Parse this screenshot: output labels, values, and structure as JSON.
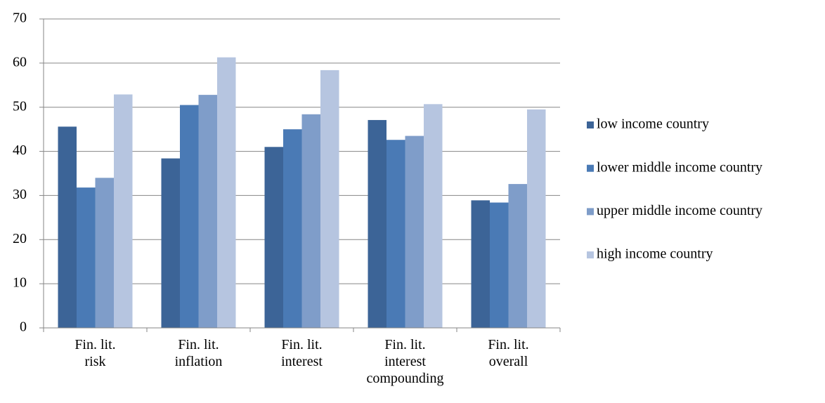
{
  "chart_data": {
    "type": "bar",
    "categories": [
      "Fin. lit.\nrisk",
      "Fin. lit.\ninflation",
      "Fin. lit.\ninterest",
      "Fin. lit.\ninterest\ncompounding",
      "Fin. lit.\noverall"
    ],
    "series": [
      {
        "name": "low income country",
        "color": "#3c6497",
        "values": [
          45.6,
          38.4,
          41,
          47.1,
          28.9
        ]
      },
      {
        "name": "lower middle income country",
        "color": "#4a7ab5",
        "values": [
          31.8,
          50.5,
          45,
          42.6,
          28.4
        ]
      },
      {
        "name": "upper middle income country",
        "color": "#7f9dc9",
        "values": [
          34,
          52.8,
          48.4,
          43.5,
          32.6
        ]
      },
      {
        "name": "high income country",
        "color": "#b6c5e0",
        "values": [
          52.9,
          61.3,
          58.4,
          50.7,
          49.5
        ]
      }
    ],
    "ylim": [
      0,
      70
    ],
    "yticks": [
      0,
      10,
      20,
      30,
      40,
      50,
      60,
      70
    ],
    "grid": true,
    "legend": "right"
  }
}
